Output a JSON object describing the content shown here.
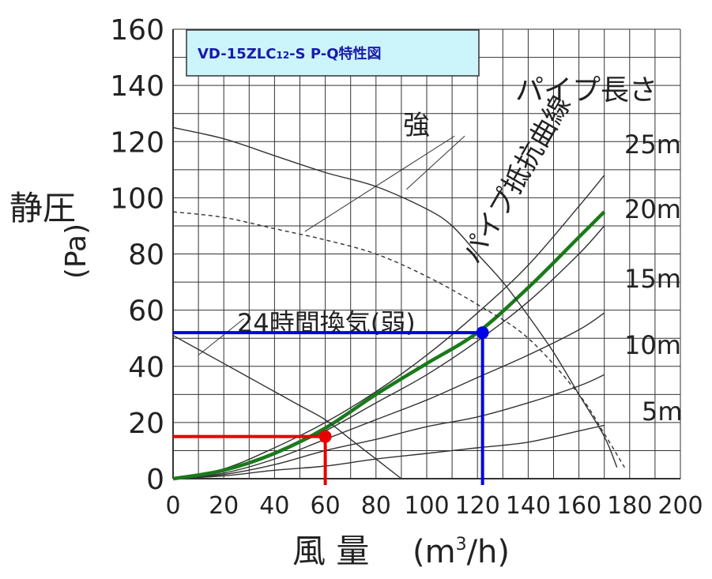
{
  "chart_data": {
    "type": "line",
    "title": "VD-15ZLC12-S P-Q特性図",
    "title_main": "VD-",
    "title_mid": "15ZLC",
    "title_sub": "12",
    "title_end": "-S P-Q特性図",
    "xlabel": "風 量",
    "xlabel_unit_pre": "(m",
    "xlabel_unit_sup": "3",
    "xlabel_unit_post": "/h)",
    "ylabel": "静圧",
    "ylabel_unit": "(Pa)",
    "xlim": [
      0,
      200
    ],
    "ylim": [
      0,
      160
    ],
    "x_ticks": [
      0,
      20,
      40,
      60,
      80,
      100,
      120,
      140,
      160,
      180,
      200
    ],
    "y_ticks": [
      0,
      20,
      40,
      60,
      80,
      100,
      120,
      140,
      160
    ],
    "grid": true,
    "fan_curves": [
      {
        "name": "強",
        "style": "solid",
        "color": "#333333",
        "points": [
          [
            0,
            125
          ],
          [
            20,
            121
          ],
          [
            40,
            115
          ],
          [
            60,
            109
          ],
          [
            80,
            104
          ],
          [
            100,
            96
          ],
          [
            110,
            90
          ],
          [
            120,
            80
          ],
          [
            130,
            70
          ],
          [
            140,
            58
          ],
          [
            150,
            45
          ],
          [
            160,
            30
          ],
          [
            170,
            15
          ],
          [
            175,
            4
          ]
        ]
      },
      {
        "name": "",
        "style": "dashed",
        "color": "#333333",
        "points": [
          [
            0,
            95
          ],
          [
            20,
            93
          ],
          [
            40,
            89
          ],
          [
            60,
            85
          ],
          [
            80,
            80
          ],
          [
            100,
            72
          ],
          [
            120,
            62
          ],
          [
            140,
            50
          ],
          [
            160,
            30
          ],
          [
            170,
            16
          ],
          [
            178,
            4
          ]
        ]
      },
      {
        "name": "24時間換気(弱)",
        "style": "solid",
        "color": "#333333",
        "points": [
          [
            0,
            51
          ],
          [
            10,
            46
          ],
          [
            20,
            41
          ],
          [
            30,
            36
          ],
          [
            40,
            31
          ],
          [
            50,
            26
          ],
          [
            60,
            21
          ],
          [
            70,
            14
          ],
          [
            80,
            7
          ],
          [
            90,
            0
          ]
        ]
      }
    ],
    "resistance_curves": [
      {
        "name": "5m",
        "style": "solid",
        "color": "#333333",
        "points": [
          [
            0,
            0
          ],
          [
            20,
            1
          ],
          [
            40,
            3
          ],
          [
            60,
            4.5
          ],
          [
            80,
            7
          ],
          [
            100,
            9
          ],
          [
            120,
            11
          ],
          [
            140,
            13
          ],
          [
            160,
            17
          ],
          [
            170,
            19
          ]
        ]
      },
      {
        "name": "10m",
        "style": "solid",
        "color": "#333333",
        "points": [
          [
            0,
            0
          ],
          [
            20,
            1.5
          ],
          [
            40,
            5
          ],
          [
            60,
            10
          ],
          [
            80,
            14
          ],
          [
            100,
            18.5
          ],
          [
            120,
            22
          ],
          [
            140,
            27
          ],
          [
            160,
            33
          ],
          [
            170,
            37
          ]
        ]
      },
      {
        "name": "15m",
        "style": "solid",
        "color": "#333333",
        "points": [
          [
            0,
            0
          ],
          [
            20,
            2
          ],
          [
            40,
            7
          ],
          [
            60,
            14
          ],
          [
            80,
            21
          ],
          [
            100,
            28
          ],
          [
            120,
            36
          ],
          [
            140,
            44
          ],
          [
            160,
            53
          ],
          [
            170,
            59
          ]
        ]
      },
      {
        "name": "20m",
        "style": "solid",
        "color": "#333333",
        "points": [
          [
            0,
            0
          ],
          [
            20,
            3
          ],
          [
            40,
            9
          ],
          [
            60,
            17
          ],
          [
            80,
            27
          ],
          [
            100,
            37
          ],
          [
            120,
            49
          ],
          [
            140,
            63
          ],
          [
            160,
            80
          ],
          [
            170,
            90
          ]
        ]
      },
      {
        "name": "25m",
        "style": "solid",
        "color": "#333333",
        "points": [
          [
            0,
            0
          ],
          [
            20,
            3.5
          ],
          [
            40,
            11
          ],
          [
            60,
            20
          ],
          [
            80,
            31
          ],
          [
            100,
            44
          ],
          [
            120,
            59
          ],
          [
            140,
            76
          ],
          [
            160,
            97
          ],
          [
            170,
            108
          ]
        ]
      },
      {
        "name": "",
        "style": "thick",
        "color": "#1a7a1a",
        "points": [
          [
            0,
            0
          ],
          [
            20,
            3
          ],
          [
            40,
            9
          ],
          [
            60,
            18
          ],
          [
            80,
            30
          ],
          [
            100,
            41
          ],
          [
            120,
            52
          ],
          [
            140,
            68
          ],
          [
            160,
            86
          ],
          [
            170,
            95
          ]
        ]
      }
    ],
    "operating_points": [
      {
        "x": 60,
        "y": 15,
        "color": "#e60000"
      },
      {
        "x": 122,
        "y": 52,
        "color": "#0000e6"
      }
    ],
    "annotations": {
      "strong_label": "強",
      "resistance_label": "パイプ抵抗曲線",
      "pipe_length_label": "パイプ長さ",
      "lengths": [
        "25m",
        "20m",
        "15m",
        "10m",
        "5m"
      ]
    }
  },
  "colors": {
    "title_bg": "#ccf5fb",
    "title_text": "#1a1aaa",
    "green": "#1a7a1a",
    "red": "#e60000",
    "blue": "#0000e6"
  }
}
